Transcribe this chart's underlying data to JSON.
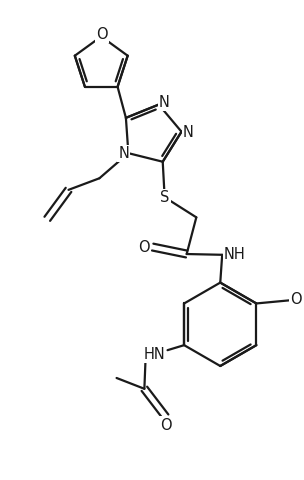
{
  "bg_color": "#ffffff",
  "line_color": "#1a1a1a",
  "line_width": 1.6,
  "font_size": 10.5,
  "fig_width": 3.04,
  "fig_height": 4.8,
  "dpi": 100,
  "xlim": [
    0,
    7.6
  ],
  "ylim": [
    0,
    12.0
  ]
}
